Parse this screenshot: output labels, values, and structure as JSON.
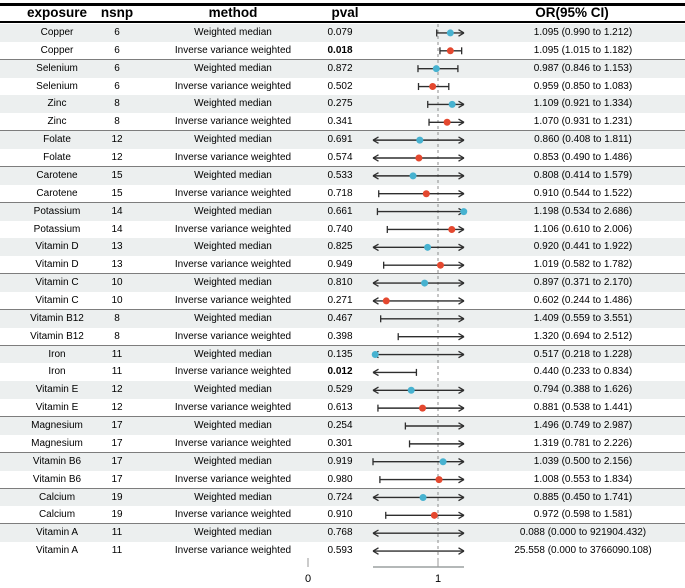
{
  "columns": {
    "exposure": "exposure",
    "nsnp": "nsnp",
    "method": "method",
    "pval": "pval",
    "or_ci": "OR(95% CI)"
  },
  "colors": {
    "weighted_median_dot": "#47b2d0",
    "ivw_dot": "#e4482f",
    "row_stripe": "#ecefef",
    "ci_line": "#2e2e2e",
    "reference_dash": "#8c8c8c",
    "axis_line": "#b4b8b8",
    "group_separator": "#7d7d7d"
  },
  "chart_data": {
    "type": "scatter",
    "variant": "forest-plot",
    "x_ticks": [
      0,
      1
    ],
    "x_tick_labels": [
      "0",
      "1"
    ],
    "reference_line": 1,
    "clip_min": 0.5,
    "clip_max": 1.2,
    "grid": false,
    "rows": [
      {
        "exposure": "Copper",
        "nsnp": "6",
        "method": "Weighted median",
        "pval": "0.079",
        "pval_bold": false,
        "or": 1.095,
        "lo": 0.99,
        "hi": 1.212,
        "or_ci": "1.095 (0.990 to 1.212)"
      },
      {
        "exposure": "Copper",
        "nsnp": "6",
        "method": "Inverse variance weighted",
        "pval": "0.018",
        "pval_bold": true,
        "or": 1.095,
        "lo": 1.015,
        "hi": 1.182,
        "or_ci": "1.095 (1.015 to 1.182)"
      },
      {
        "exposure": "Selenium",
        "nsnp": "6",
        "method": "Weighted median",
        "pval": "0.872",
        "pval_bold": false,
        "or": 0.987,
        "lo": 0.846,
        "hi": 1.153,
        "or_ci": "0.987 (0.846 to 1.153)"
      },
      {
        "exposure": "Selenium",
        "nsnp": "6",
        "method": "Inverse variance weighted",
        "pval": "0.502",
        "pval_bold": false,
        "or": 0.959,
        "lo": 0.85,
        "hi": 1.083,
        "or_ci": "0.959 (0.850 to 1.083)"
      },
      {
        "exposure": "Zinc",
        "nsnp": "8",
        "method": "Weighted median",
        "pval": "0.275",
        "pval_bold": false,
        "or": 1.109,
        "lo": 0.921,
        "hi": 1.334,
        "or_ci": "1.109 (0.921 to 1.334)"
      },
      {
        "exposure": "Zinc",
        "nsnp": "8",
        "method": "Inverse variance weighted",
        "pval": "0.341",
        "pval_bold": false,
        "or": 1.07,
        "lo": 0.931,
        "hi": 1.231,
        "or_ci": "1.070 (0.931 to 1.231)"
      },
      {
        "exposure": "Folate",
        "nsnp": "12",
        "method": "Weighted median",
        "pval": "0.691",
        "pval_bold": false,
        "or": 0.86,
        "lo": 0.408,
        "hi": 1.811,
        "or_ci": "0.860 (0.408 to 1.811)"
      },
      {
        "exposure": "Folate",
        "nsnp": "12",
        "method": "Inverse variance weighted",
        "pval": "0.574",
        "pval_bold": false,
        "or": 0.853,
        "lo": 0.49,
        "hi": 1.486,
        "or_ci": "0.853 (0.490 to 1.486)"
      },
      {
        "exposure": "Carotene",
        "nsnp": "15",
        "method": "Weighted median",
        "pval": "0.533",
        "pval_bold": false,
        "or": 0.808,
        "lo": 0.414,
        "hi": 1.579,
        "or_ci": "0.808 (0.414 to 1.579)"
      },
      {
        "exposure": "Carotene",
        "nsnp": "15",
        "method": "Inverse variance weighted",
        "pval": "0.718",
        "pval_bold": false,
        "or": 0.91,
        "lo": 0.544,
        "hi": 1.522,
        "or_ci": "0.910 (0.544 to 1.522)"
      },
      {
        "exposure": "Potassium",
        "nsnp": "14",
        "method": "Weighted median",
        "pval": "0.661",
        "pval_bold": false,
        "or": 1.198,
        "lo": 0.534,
        "hi": 2.686,
        "or_ci": "1.198 (0.534 to 2.686)"
      },
      {
        "exposure": "Potassium",
        "nsnp": "14",
        "method": "Inverse variance weighted",
        "pval": "0.740",
        "pval_bold": false,
        "or": 1.106,
        "lo": 0.61,
        "hi": 2.006,
        "or_ci": "1.106 (0.610 to 2.006)"
      },
      {
        "exposure": "Vitamin D",
        "nsnp": "13",
        "method": "Weighted median",
        "pval": "0.825",
        "pval_bold": false,
        "or": 0.92,
        "lo": 0.441,
        "hi": 1.922,
        "or_ci": "0.920 (0.441 to 1.922)"
      },
      {
        "exposure": "Vitamin D",
        "nsnp": "13",
        "method": "Inverse variance weighted",
        "pval": "0.949",
        "pval_bold": false,
        "or": 1.019,
        "lo": 0.582,
        "hi": 1.782,
        "or_ci": "1.019 (0.582 to 1.782)"
      },
      {
        "exposure": "Vitamin C",
        "nsnp": "10",
        "method": "Weighted median",
        "pval": "0.810",
        "pval_bold": false,
        "or": 0.897,
        "lo": 0.371,
        "hi": 2.17,
        "or_ci": "0.897 (0.371 to 2.170)"
      },
      {
        "exposure": "Vitamin C",
        "nsnp": "10",
        "method": "Inverse variance weighted",
        "pval": "0.271",
        "pval_bold": false,
        "or": 0.602,
        "lo": 0.244,
        "hi": 1.486,
        "or_ci": "0.602 (0.244 to 1.486)"
      },
      {
        "exposure": "Vitamin B12",
        "nsnp": "8",
        "method": "Weighted median",
        "pval": "0.467",
        "pval_bold": false,
        "or": 1.409,
        "lo": 0.559,
        "hi": 3.551,
        "or_ci": "1.409 (0.559 to 3.551)"
      },
      {
        "exposure": "Vitamin B12",
        "nsnp": "8",
        "method": "Inverse variance weighted",
        "pval": "0.398",
        "pval_bold": false,
        "or": 1.32,
        "lo": 0.694,
        "hi": 2.512,
        "or_ci": "1.320 (0.694 to 2.512)"
      },
      {
        "exposure": "Iron",
        "nsnp": "11",
        "method": "Weighted median",
        "pval": "0.135",
        "pval_bold": false,
        "or": 0.517,
        "lo": 0.218,
        "hi": 1.228,
        "or_ci": "0.517 (0.218 to 1.228)"
      },
      {
        "exposure": "Iron",
        "nsnp": "11",
        "method": "Inverse variance weighted",
        "pval": "0.012",
        "pval_bold": true,
        "or": 0.44,
        "lo": 0.233,
        "hi": 0.834,
        "or_ci": "0.440 (0.233 to 0.834)"
      },
      {
        "exposure": "Vitamin E",
        "nsnp": "12",
        "method": "Weighted median",
        "pval": "0.529",
        "pval_bold": false,
        "or": 0.794,
        "lo": 0.388,
        "hi": 1.626,
        "or_ci": "0.794 (0.388 to 1.626)"
      },
      {
        "exposure": "Vitamin E",
        "nsnp": "12",
        "method": "Inverse variance weighted",
        "pval": "0.613",
        "pval_bold": false,
        "or": 0.881,
        "lo": 0.538,
        "hi": 1.441,
        "or_ci": "0.881 (0.538 to 1.441)"
      },
      {
        "exposure": "Magnesium",
        "nsnp": "17",
        "method": "Weighted median",
        "pval": "0.254",
        "pval_bold": false,
        "or": 1.496,
        "lo": 0.749,
        "hi": 2.987,
        "or_ci": "1.496 (0.749 to 2.987)"
      },
      {
        "exposure": "Magnesium",
        "nsnp": "17",
        "method": "Inverse variance weighted",
        "pval": "0.301",
        "pval_bold": false,
        "or": 1.319,
        "lo": 0.781,
        "hi": 2.226,
        "or_ci": "1.319 (0.781 to 2.226)"
      },
      {
        "exposure": "Vitamin B6",
        "nsnp": "17",
        "method": "Weighted median",
        "pval": "0.919",
        "pval_bold": false,
        "or": 1.039,
        "lo": 0.5,
        "hi": 2.156,
        "or_ci": "1.039 (0.500 to 2.156)"
      },
      {
        "exposure": "Vitamin B6",
        "nsnp": "17",
        "method": "Inverse variance weighted",
        "pval": "0.980",
        "pval_bold": false,
        "or": 1.008,
        "lo": 0.553,
        "hi": 1.834,
        "or_ci": "1.008 (0.553 to 1.834)"
      },
      {
        "exposure": "Calcium",
        "nsnp": "19",
        "method": "Weighted median",
        "pval": "0.724",
        "pval_bold": false,
        "or": 0.885,
        "lo": 0.45,
        "hi": 1.741,
        "or_ci": "0.885 (0.450 to 1.741)"
      },
      {
        "exposure": "Calcium",
        "nsnp": "19",
        "method": "Inverse variance weighted",
        "pval": "0.910",
        "pval_bold": false,
        "or": 0.972,
        "lo": 0.598,
        "hi": 1.581,
        "or_ci": "0.972 (0.598 to 1.581)"
      },
      {
        "exposure": "Vitamin A",
        "nsnp": "11",
        "method": "Weighted median",
        "pval": "0.768",
        "pval_bold": false,
        "or": 0.088,
        "lo": 0.0,
        "hi": 921904.432,
        "or_ci": "0.088 (0.000 to 921904.432)"
      },
      {
        "exposure": "Vitamin A",
        "nsnp": "11",
        "method": "Inverse variance weighted",
        "pval": "0.593",
        "pval_bold": false,
        "or": 25.558,
        "lo": 0.0,
        "hi": 3766090.108,
        "or_ci": "25.558 (0.000 to 3766090.108)"
      }
    ]
  }
}
